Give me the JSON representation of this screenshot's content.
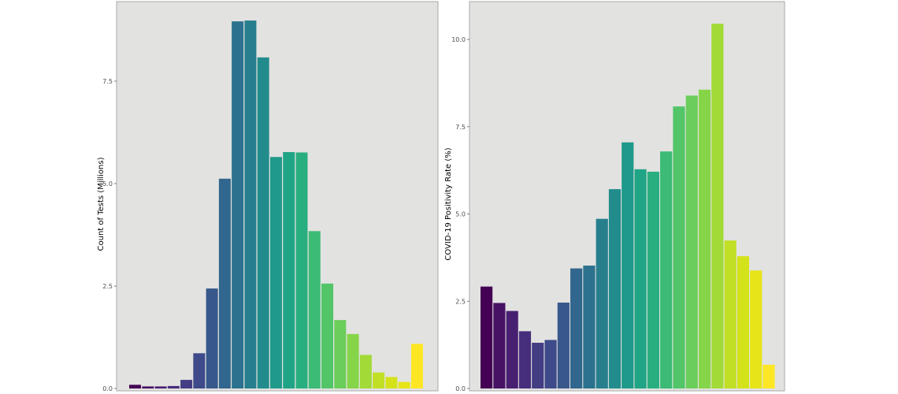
{
  "chart_data": [
    {
      "type": "bar",
      "ylabel": "Count of Tests (Millions)",
      "ylim": [
        0,
        9.3
      ],
      "yticks": [
        0,
        2.5,
        5,
        7.5
      ],
      "ytick_labels": [
        "0.0",
        "2.5",
        "5.0",
        "7.5"
      ],
      "grid": false,
      "values": [
        0.09,
        0.05,
        0.05,
        0.06,
        0.21,
        0.86,
        2.44,
        5.12,
        8.96,
        8.98,
        8.08,
        5.65,
        5.77,
        5.76,
        3.84,
        2.56,
        1.67,
        1.33,
        0.82,
        0.39,
        0.28,
        0.16,
        1.09
      ],
      "colors": [
        "#440154",
        "#471164",
        "#482071",
        "#472e7c",
        "#433d84",
        "#3e4a89",
        "#38588c",
        "#31668e",
        "#2c728e",
        "#277f8e",
        "#228c8d",
        "#1f998a",
        "#20a486",
        "#29af7f",
        "#3bbb75",
        "#52c569",
        "#6bcd5a",
        "#86d549",
        "#a2da37",
        "#c0df25",
        "#d4e21a",
        "#e7e419",
        "#fde725"
      ]
    },
    {
      "type": "bar",
      "ylabel": "COVID-19 Positivity Rate (%)",
      "ylim": [
        0,
        11
      ],
      "yticks": [
        0,
        2.5,
        5,
        7.5,
        10
      ],
      "ytick_labels": [
        "0.0",
        "2.5",
        "5.0",
        "7.5",
        "10.0"
      ],
      "grid": false,
      "values": [
        2.92,
        2.45,
        2.22,
        1.64,
        1.31,
        1.39,
        2.46,
        3.44,
        3.52,
        4.86,
        5.71,
        7.05,
        6.28,
        6.21,
        6.79,
        8.08,
        8.39,
        8.56,
        10.45,
        4.24,
        3.79,
        3.38,
        0.68
      ],
      "colors": [
        "#440154",
        "#471164",
        "#482071",
        "#472e7c",
        "#433d84",
        "#3e4a89",
        "#38588c",
        "#31668e",
        "#2c728e",
        "#277f8e",
        "#228c8d",
        "#1f998a",
        "#20a486",
        "#29af7f",
        "#3bbb75",
        "#52c569",
        "#6bcd5a",
        "#86d549",
        "#a2da37",
        "#c0df25",
        "#d4e21a",
        "#e7e419",
        "#fde725"
      ]
    }
  ]
}
